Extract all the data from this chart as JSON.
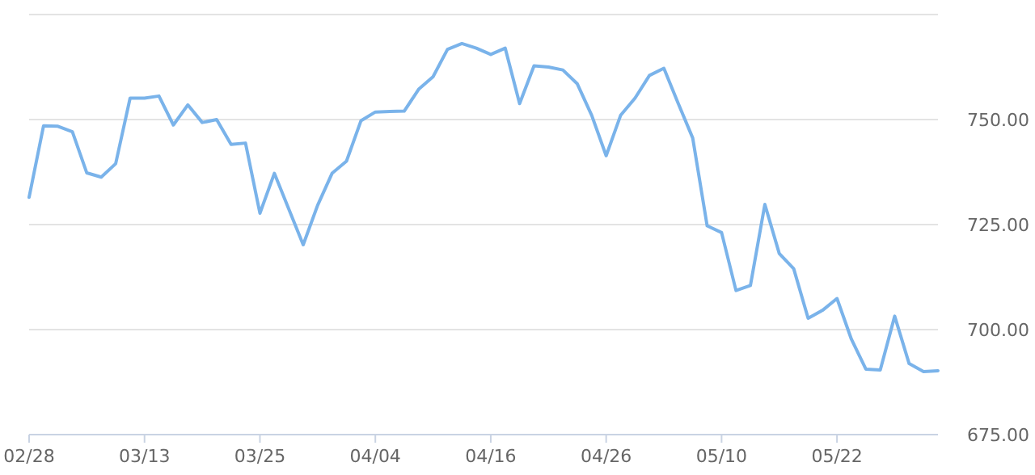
{
  "chart_data": {
    "type": "line",
    "categories": [
      "02/28",
      null,
      null,
      null,
      null,
      null,
      null,
      null,
      "03/13",
      null,
      null,
      null,
      null,
      null,
      null,
      null,
      "03/25",
      null,
      null,
      null,
      null,
      null,
      null,
      null,
      "04/04",
      null,
      null,
      null,
      null,
      null,
      null,
      null,
      "04/16",
      null,
      null,
      null,
      null,
      null,
      null,
      null,
      "04/26",
      null,
      null,
      null,
      null,
      null,
      null,
      null,
      "05/10",
      null,
      null,
      null,
      null,
      null,
      null,
      null,
      "05/22",
      null,
      null,
      null,
      null,
      null,
      null,
      null
    ],
    "series": [
      {
        "color": "#7ab3ea",
        "values": [
          731.5,
          748.5,
          748.4,
          747.1,
          737.3,
          736.3,
          739.5,
          755.1,
          755.1,
          755.6,
          748.7,
          753.5,
          749.3,
          750,
          744.1,
          744.4,
          727.7,
          737.2,
          728.7,
          720.2,
          729.6,
          737.2,
          740.1,
          749.7,
          751.8,
          751.9,
          752,
          757.2,
          760.2,
          766.7,
          768.1,
          767,
          765.5,
          767,
          753.8,
          762.8,
          762.5,
          761.8,
          758.5,
          751,
          741.4,
          751,
          755.1,
          760.5,
          762.2,
          753.8,
          745.6,
          724.7,
          723.1,
          709.3,
          710.5,
          729.8,
          718.1,
          714.5,
          702.7,
          704.6,
          707.4,
          697.7,
          690.6,
          690.4,
          703.2,
          691.9,
          690,
          690.2
        ]
      }
    ],
    "ylim": [
      675,
      775
    ],
    "yticks": [
      {
        "value": 675,
        "label": "675.00"
      },
      {
        "value": 700,
        "label": "700.00"
      },
      {
        "value": 725,
        "label": "725.00"
      },
      {
        "value": 750,
        "label": "750.00"
      },
      {
        "value": 775,
        "label": null
      }
    ],
    "grid": "y",
    "marker": "none",
    "line_style": "solid"
  }
}
